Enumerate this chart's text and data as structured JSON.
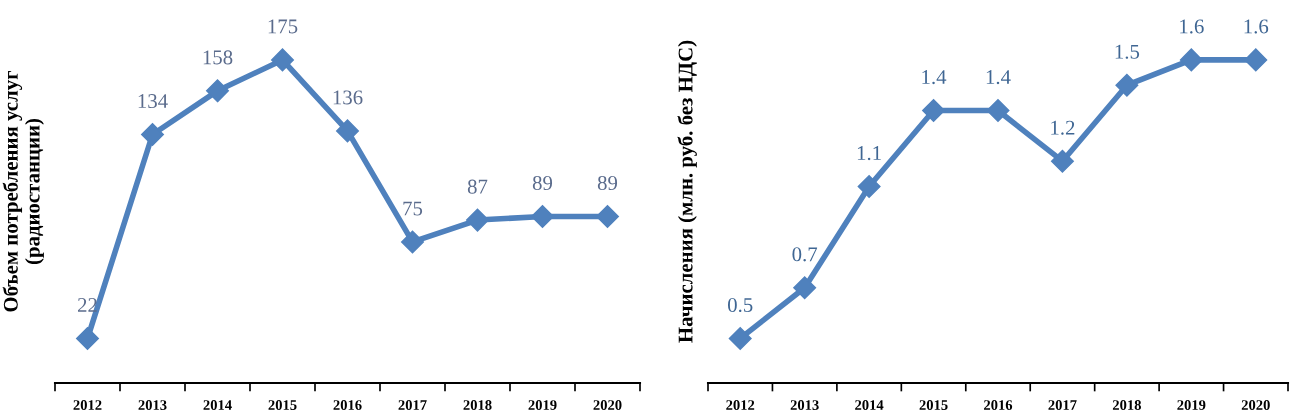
{
  "chart_data": [
    {
      "type": "line",
      "ylabel": "Объем потребления услуг (радиостанции)",
      "categories": [
        "2012",
        "2013",
        "2014",
        "2015",
        "2016",
        "2017",
        "2018",
        "2019",
        "2020"
      ],
      "data_labels": true,
      "marker": "diamond",
      "tick_labels": "x",
      "series": [
        {
          "color": "#4f81bd",
          "values": [
            22,
            134,
            158,
            175,
            136,
            75,
            87,
            89,
            89
          ]
        }
      ]
    },
    {
      "type": "line",
      "ylabel": "Начисления (млн. руб. без НДС)",
      "categories": [
        "2012",
        "2013",
        "2014",
        "2015",
        "2016",
        "2017",
        "2018",
        "2019",
        "2020"
      ],
      "data_labels": true,
      "marker": "diamond",
      "tick_labels": "x",
      "series": [
        {
          "color": "#4f81bd",
          "values": [
            0.5,
            0.7,
            1.1,
            1.4,
            1.4,
            1.2,
            1.5,
            1.6,
            1.6
          ]
        }
      ]
    }
  ]
}
